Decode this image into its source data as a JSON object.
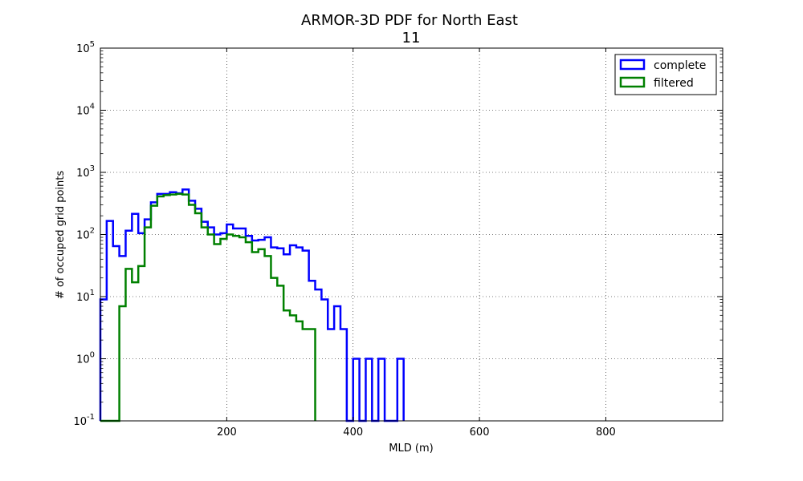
{
  "chart_data": {
    "type": "histogram",
    "title": "ARMOR-3D PDF for North East",
    "subtitle": "11",
    "xlabel": "MLD (m)",
    "ylabel": "# of occuped grid points",
    "xlim": [
      0,
      985
    ],
    "ylim": [
      0.1,
      100000
    ],
    "y_scale": "log",
    "x_ticks": [
      200,
      400,
      600,
      800
    ],
    "x_tick_labels": [
      "200",
      "400",
      "600",
      "800"
    ],
    "y_ticks": [
      {
        "value": 0.1,
        "base": "10",
        "exp": "-1"
      },
      {
        "value": 1,
        "base": "10",
        "exp": "0"
      },
      {
        "value": 10,
        "base": "10",
        "exp": "1"
      },
      {
        "value": 100,
        "base": "10",
        "exp": "2"
      },
      {
        "value": 1000,
        "base": "10",
        "exp": "3"
      },
      {
        "value": 10000,
        "base": "10",
        "exp": "4"
      },
      {
        "value": 100000,
        "base": "10",
        "exp": "5"
      }
    ],
    "grid": true,
    "legend_position": "top-right",
    "bin_width": 10,
    "series": [
      {
        "name": "complete",
        "color": "#0000ff",
        "x": [
          0,
          10,
          20,
          30,
          40,
          50,
          60,
          70,
          80,
          90,
          100,
          110,
          120,
          130,
          140,
          150,
          160,
          170,
          180,
          190,
          200,
          210,
          220,
          230,
          240,
          250,
          260,
          270,
          280,
          290,
          300,
          310,
          320,
          330,
          340,
          350,
          360,
          370,
          380,
          390,
          400,
          410,
          420,
          430,
          440,
          450,
          460,
          470
        ],
        "values": [
          9,
          165,
          65,
          45,
          115,
          215,
          105,
          175,
          330,
          450,
          450,
          480,
          460,
          530,
          350,
          260,
          160,
          130,
          100,
          105,
          145,
          125,
          125,
          95,
          80,
          82,
          90,
          62,
          60,
          48,
          67,
          62,
          55,
          18,
          13,
          9,
          3,
          7,
          3,
          0.1,
          1,
          0.1,
          1,
          0.1,
          1,
          0.1,
          0.1,
          1
        ]
      },
      {
        "name": "filtered",
        "color": "#008000",
        "x": [
          0,
          10,
          20,
          30,
          40,
          50,
          60,
          70,
          80,
          90,
          100,
          110,
          120,
          130,
          140,
          150,
          160,
          170,
          180,
          190,
          200,
          210,
          220,
          230,
          240,
          250,
          260,
          270,
          280,
          290,
          300,
          310,
          320,
          330
        ],
        "values": [
          0.1,
          0.1,
          0.1,
          7,
          28,
          17,
          31,
          130,
          290,
          410,
          430,
          440,
          450,
          440,
          300,
          220,
          130,
          100,
          70,
          85,
          100,
          95,
          90,
          75,
          52,
          58,
          45,
          20,
          15,
          6,
          5,
          4,
          3,
          3
        ]
      }
    ]
  }
}
